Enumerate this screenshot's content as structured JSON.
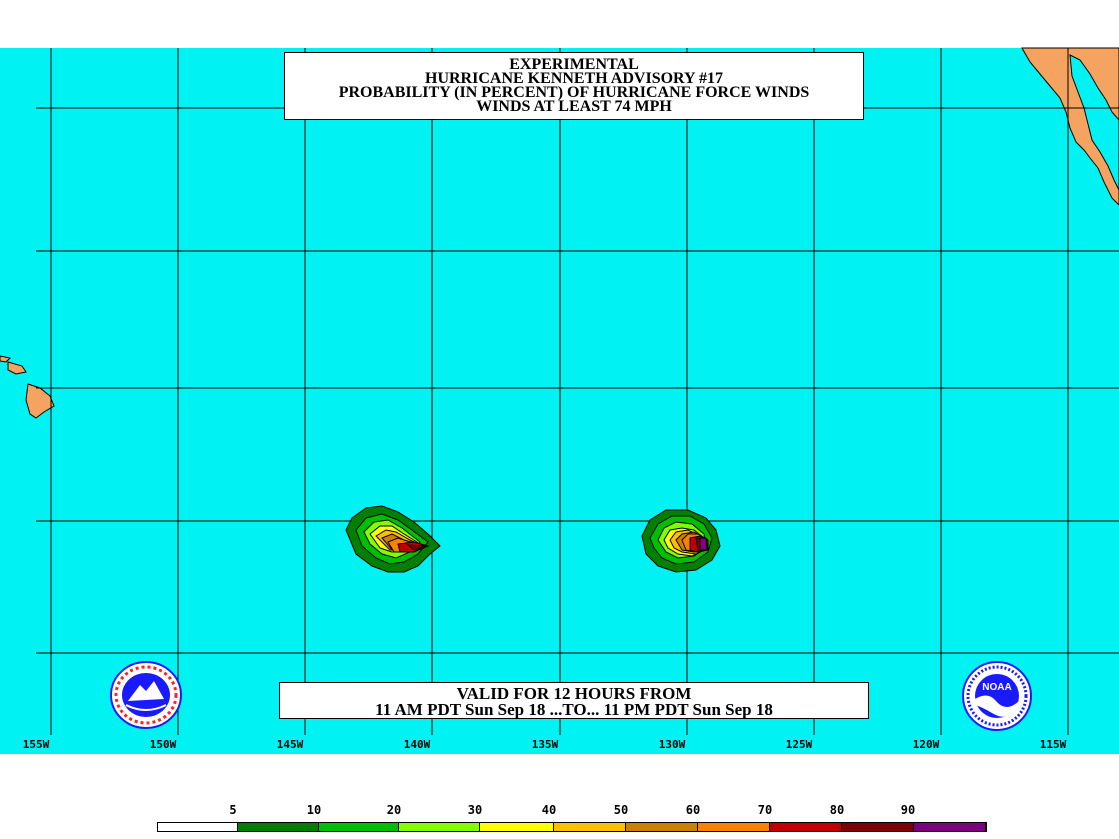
{
  "title": {
    "line1": "EXPERIMENTAL",
    "line2": "HURRICANE KENNETH ADVISORY #17",
    "line3": "PROBABILITY (IN PERCENT) OF HURRICANE FORCE WINDS",
    "line4": "WINDS AT LEAST 74 MPH"
  },
  "valid": {
    "line1": "VALID FOR 12 HOURS FROM",
    "line2": "11 AM PDT Sun Sep 18 ...TO... 11 PM PDT Sun Sep 18"
  },
  "map": {
    "ocean_color": "#00f2f2",
    "land_color": "#f4a460",
    "longitude_labels": [
      "155W",
      "150W",
      "145W",
      "140W",
      "135W",
      "130W",
      "125W",
      "120W",
      "115W"
    ],
    "storm_probability_areas": [
      "storm-area-west",
      "storm-area-east"
    ]
  },
  "legend": {
    "labels": [
      "5",
      "10",
      "20",
      "30",
      "40",
      "50",
      "60",
      "70",
      "80",
      "90"
    ],
    "colors": [
      "#ffffff",
      "#007f00",
      "#00bf00",
      "#7fff00",
      "#ffff00",
      "#ffbf00",
      "#cc7f00",
      "#ff7f00",
      "#bf0000",
      "#7f0000",
      "#7f007f"
    ]
  },
  "logos": {
    "left": "nws-logo-icon",
    "right": "noaa-logo-icon",
    "noaa_text": "NOAA"
  }
}
